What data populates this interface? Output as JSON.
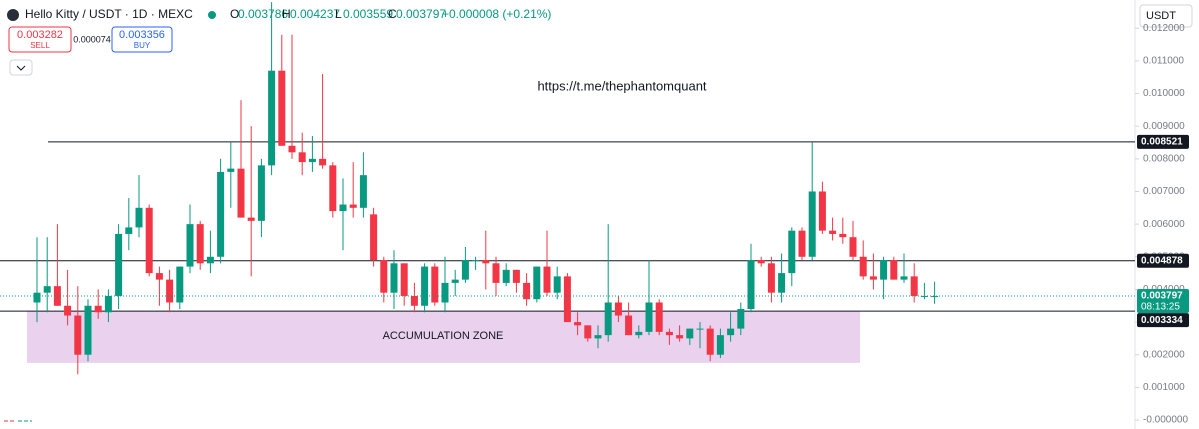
{
  "header": {
    "symbol": "Hello Kitty / USDT · 1D · MEXC",
    "ohlc": [
      {
        "label": "O",
        "value": "0.003786"
      },
      {
        "label": "H",
        "value": "0.004237"
      },
      {
        "label": "L",
        "value": "0.003559"
      },
      {
        "label": "C",
        "value": "0.003797"
      }
    ],
    "change": "+0.000008 (+0.21%)",
    "sell_price": "0.003282",
    "sell": "SELL",
    "spread": "0.000074",
    "buy_price": "0.003356",
    "buy": "BUY",
    "currency": "USDT"
  },
  "chart_data": {
    "type": "candlestick",
    "annotations": [
      "https://t.me/thephantomquant"
    ],
    "zone": {
      "label": "ACCUMULATION ZONE",
      "top": 0.003334,
      "bottom": 0.00175
    },
    "levels": [
      0.008521,
      0.004878,
      0.003334
    ],
    "last_price": 0.003797,
    "countdown": "08:13:25",
    "up_color": "#089981",
    "down_color": "#f23645",
    "ylim": [
      -0.000275,
      0.012865
    ],
    "yticks": [
      {
        "value": 0,
        "label": "-0.000000"
      },
      {
        "value": 0.001,
        "label": "0.001000"
      },
      {
        "value": 0.002,
        "label": "0.002000"
      },
      {
        "value": 0.003,
        "label": "0.003000"
      },
      {
        "value": 0.004,
        "label": "0.004000"
      },
      {
        "value": 0.005,
        "label": "0.005000"
      },
      {
        "value": 0.006,
        "label": "0.006000"
      },
      {
        "value": 0.007,
        "label": "0.007000"
      },
      {
        "value": 0.008,
        "label": "0.008000"
      },
      {
        "value": 0.009,
        "label": "0.009000"
      },
      {
        "value": 0.01,
        "label": "0.010000"
      },
      {
        "value": 0.011,
        "label": "0.011000"
      },
      {
        "value": 0.012,
        "label": "0.012000"
      }
    ],
    "open": [
      0.0036,
      0.0039,
      0.0041,
      0.0035,
      0.0032,
      0.002,
      0.0035,
      0.0033,
      0.0038,
      0.0057,
      0.0059,
      0.0065,
      0.0045,
      0.0043,
      0.0036,
      0.0047,
      0.006,
      0.0048,
      0.005,
      0.0076,
      0.0077,
      0.0062,
      0.0061,
      0.0078,
      0.0107,
      0.0084,
      0.0082,
      0.0079,
      0.008,
      0.0078,
      0.0064,
      0.0066,
      0.0065,
      0.0063,
      0.0049,
      0.0039,
      0.0048,
      0.0038,
      0.0035,
      0.0047,
      0.0036,
      0.0042,
      0.0043,
      0.0049,
      0.0049,
      0.0048,
      0.0042,
      0.0046,
      0.0042,
      0.0037,
      0.0047,
      0.0039,
      0.0044,
      0.003,
      0.0029,
      0.0025,
      0.0026,
      0.0036,
      0.0032,
      0.0026,
      0.0027,
      0.0036,
      0.0027,
      0.0026,
      0.0025,
      0.0028,
      0.0028,
      0.002,
      0.0026,
      0.0028,
      0.0034,
      0.0049,
      0.0048,
      0.0039,
      0.0045,
      0.0058,
      0.005,
      0.007,
      0.0058,
      0.0057,
      0.0056,
      0.005,
      0.0044,
      0.0043,
      0.0049,
      0.0043,
      0.0044,
      0.0038,
      0.003786
    ],
    "high": [
      0.0056,
      0.0056,
      0.006,
      0.0046,
      0.0041,
      0.0037,
      0.004,
      0.004,
      0.006,
      0.0068,
      0.0075,
      0.0066,
      0.0047,
      0.0046,
      0.0047,
      0.0066,
      0.0061,
      0.0058,
      0.008,
      0.0085,
      0.0098,
      0.009,
      0.008,
      0.0128,
      0.0118,
      0.0118,
      0.0088,
      0.0087,
      0.0106,
      0.0079,
      0.0074,
      0.0079,
      0.0082,
      0.0065,
      0.005,
      0.0052,
      0.0048,
      0.0042,
      0.0048,
      0.0048,
      0.005,
      0.0046,
      0.0053,
      0.005,
      0.0058,
      0.005,
      0.0048,
      0.0046,
      0.0045,
      0.0047,
      0.0058,
      0.0047,
      0.0045,
      0.0033,
      0.0029,
      0.0029,
      0.006,
      0.0038,
      0.0036,
      0.0029,
      0.0049,
      0.0037,
      0.0028,
      0.0029,
      0.0028,
      0.003,
      0.0029,
      0.0028,
      0.0033,
      0.0036,
      0.0054,
      0.005,
      0.005,
      0.0051,
      0.0059,
      0.0059,
      0.0085,
      0.0073,
      0.0062,
      0.0062,
      0.0061,
      0.0055,
      0.0051,
      0.005,
      0.005,
      0.0051,
      0.0048,
      0.0042,
      0.004237
    ],
    "low": [
      0.003,
      0.0033,
      0.0035,
      0.0029,
      0.0014,
      0.0018,
      0.0031,
      0.003,
      0.0034,
      0.0052,
      0.0056,
      0.0044,
      0.0035,
      0.0033,
      0.0034,
      0.0045,
      0.0046,
      0.0045,
      0.0048,
      0.0065,
      0.0062,
      0.0044,
      0.0056,
      0.0075,
      0.0084,
      0.008,
      0.0075,
      0.0076,
      0.0077,
      0.0062,
      0.0052,
      0.0062,
      0.0062,
      0.0047,
      0.0036,
      0.0034,
      0.0035,
      0.0033,
      0.0033,
      0.0035,
      0.0033,
      0.0038,
      0.0042,
      0.0046,
      0.004,
      0.0038,
      0.0041,
      0.0039,
      0.0035,
      0.0036,
      0.0038,
      0.0037,
      0.0031,
      0.0026,
      0.0024,
      0.0022,
      0.0024,
      0.003,
      0.0026,
      0.0025,
      0.0026,
      0.0026,
      0.0023,
      0.0024,
      0.0023,
      0.0022,
      0.0018,
      0.0019,
      0.0024,
      0.0026,
      0.0033,
      0.0047,
      0.0036,
      0.0036,
      0.0041,
      0.0049,
      0.0049,
      0.0057,
      0.0055,
      0.0054,
      0.0049,
      0.0043,
      0.004,
      0.0037,
      0.0043,
      0.0042,
      0.0036,
      0.0037,
      0.003559
    ],
    "close": [
      0.0039,
      0.0041,
      0.0035,
      0.0032,
      0.002,
      0.0035,
      0.0033,
      0.0038,
      0.0057,
      0.0059,
      0.0065,
      0.0045,
      0.0043,
      0.0036,
      0.0047,
      0.006,
      0.0048,
      0.005,
      0.0076,
      0.0077,
      0.0062,
      0.0061,
      0.0078,
      0.0107,
      0.0084,
      0.0082,
      0.0079,
      0.008,
      0.0078,
      0.0064,
      0.0066,
      0.0065,
      0.0075,
      0.0049,
      0.0039,
      0.0048,
      0.0038,
      0.0035,
      0.0047,
      0.0036,
      0.0042,
      0.0043,
      0.0049,
      0.0049,
      0.0048,
      0.0042,
      0.0046,
      0.0042,
      0.0037,
      0.0047,
      0.0039,
      0.0044,
      0.003,
      0.0029,
      0.0025,
      0.0026,
      0.0036,
      0.0032,
      0.0026,
      0.0027,
      0.0036,
      0.0027,
      0.0026,
      0.0025,
      0.0028,
      0.0028,
      0.002,
      0.0026,
      0.0028,
      0.0034,
      0.0049,
      0.0048,
      0.0039,
      0.0045,
      0.0058,
      0.005,
      0.007,
      0.0058,
      0.0057,
      0.0056,
      0.005,
      0.0044,
      0.0043,
      0.0049,
      0.0043,
      0.0044,
      0.0038,
      0.0038,
      0.003797
    ]
  }
}
